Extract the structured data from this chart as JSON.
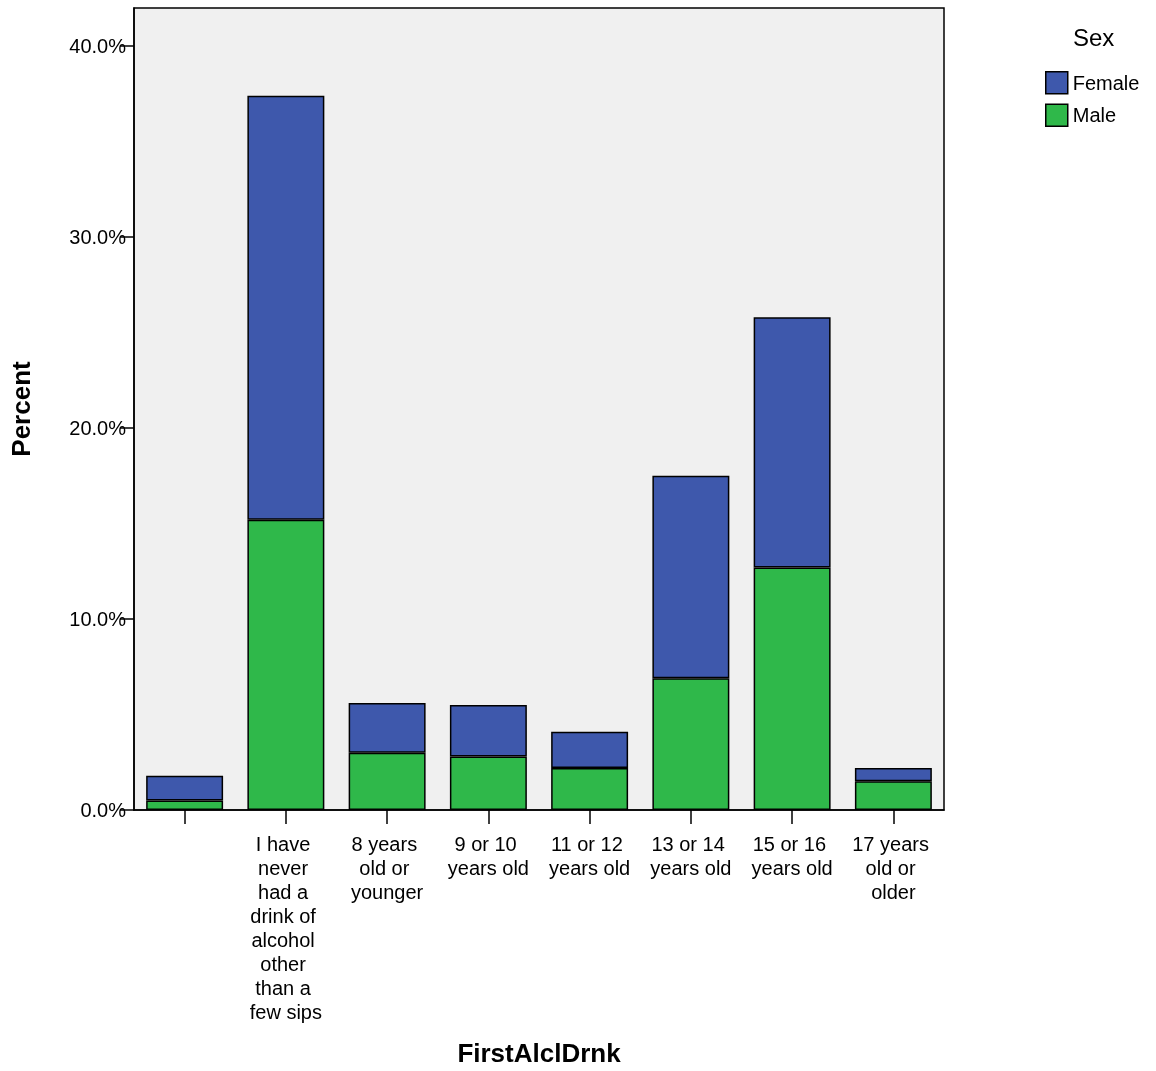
{
  "chart_data": {
    "type": "bar",
    "stacked": true,
    "xlabel": "FirstAlclDrnk",
    "ylabel": "Percent",
    "legend_title": "Sex",
    "categories": [
      null,
      "I have never had a drink of alcohol other than a few sips",
      "8 years old or younger",
      "9 or 10 years old",
      "11 or 12 years old",
      "13 or 14 years old",
      "15 or 16 years old",
      "17 years old or older"
    ],
    "series": [
      {
        "name": "Male",
        "color": "#2fb84a",
        "values": [
          0.5,
          15.2,
          3.0,
          2.8,
          2.2,
          6.9,
          12.7,
          1.5
        ]
      },
      {
        "name": "Female",
        "color": "#3e58ac",
        "values": [
          1.3,
          22.2,
          2.6,
          2.7,
          1.9,
          10.6,
          13.1,
          0.7
        ]
      }
    ],
    "ylim": [
      0,
      42
    ],
    "yticks": [
      {
        "value": 0,
        "label": "0.0%"
      },
      {
        "value": 10,
        "label": "10.0%"
      },
      {
        "value": 20,
        "label": "20.0%"
      },
      {
        "value": 30,
        "label": "30.0%"
      },
      {
        "value": 40,
        "label": "40.0%"
      }
    ],
    "grid": false,
    "legend": "top right"
  }
}
